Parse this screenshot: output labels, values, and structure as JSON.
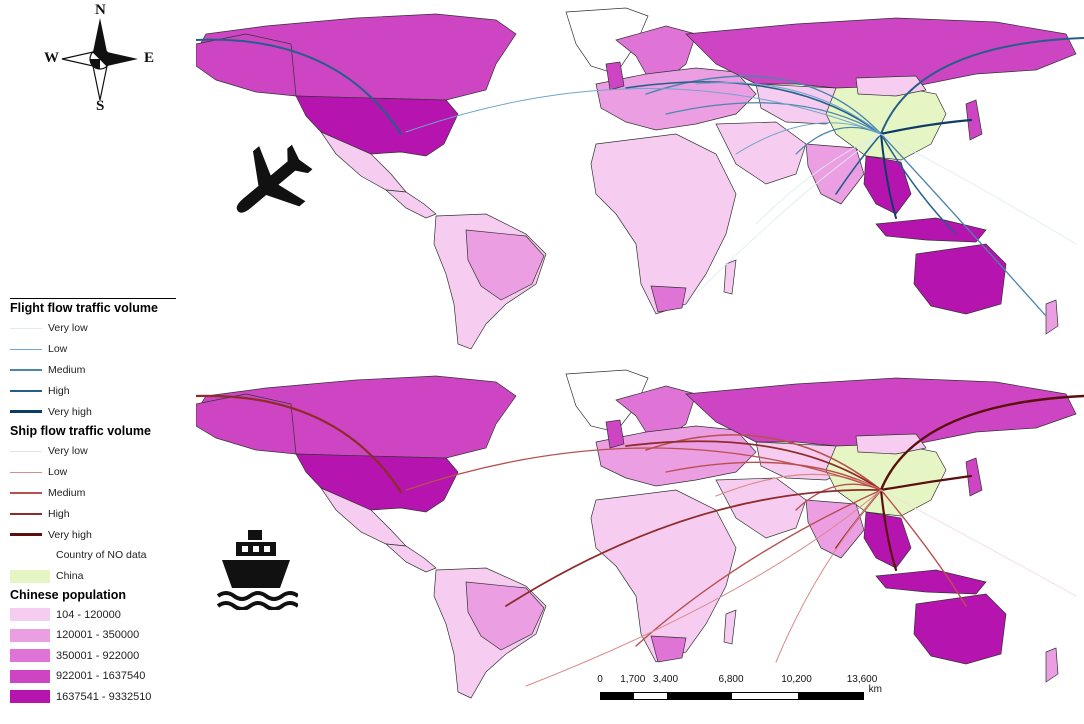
{
  "compass": {
    "north": "N",
    "south": "S",
    "east": "E",
    "west": "W"
  },
  "icons": {
    "flight": "airplane-icon",
    "ship": "ship-icon",
    "compass": "compass-rose-icon"
  },
  "legend": {
    "flight_title": "Flight flow traffic volume",
    "flight_levels": [
      {
        "label": "Very low",
        "color": "#dfeaf2"
      },
      {
        "label": "Low",
        "color": "#6fa6c9"
      },
      {
        "label": "Medium",
        "color": "#4a86ad"
      },
      {
        "label": "High",
        "color": "#245f8a"
      },
      {
        "label": "Very high",
        "color": "#0d3c66"
      }
    ],
    "ship_title": "Ship flow traffic volume",
    "ship_levels": [
      {
        "label": "Very low",
        "color": "#f4dcdc"
      },
      {
        "label": "Low",
        "color": "#d98a8a"
      },
      {
        "label": "Medium",
        "color": "#b85050"
      },
      {
        "label": "High",
        "color": "#8e2b2b"
      },
      {
        "label": "Very high",
        "color": "#5c0f0f"
      }
    ],
    "no_data_label": "Country of NO data",
    "china_label": "China",
    "china_color": "#e6f5c4",
    "population_title": "Chinese population",
    "population_classes": [
      {
        "label": "104 - 120000",
        "color": "#f6cdf0"
      },
      {
        "label": "120001 - 350000",
        "color": "#ec9ee3"
      },
      {
        "label": "350001 - 922000",
        "color": "#df74d6"
      },
      {
        "label": "922001 - 1637540",
        "color": "#cd45c3"
      },
      {
        "label": "1637541 - 9332510",
        "color": "#b614ae"
      }
    ]
  },
  "scale_bar": {
    "ticks": [
      "0",
      "1,700",
      "3,400",
      "6,800",
      "10,200",
      "13,600"
    ],
    "tick_values": [
      0,
      1700,
      3400,
      6800,
      10200,
      13600
    ],
    "unit": "km"
  }
}
